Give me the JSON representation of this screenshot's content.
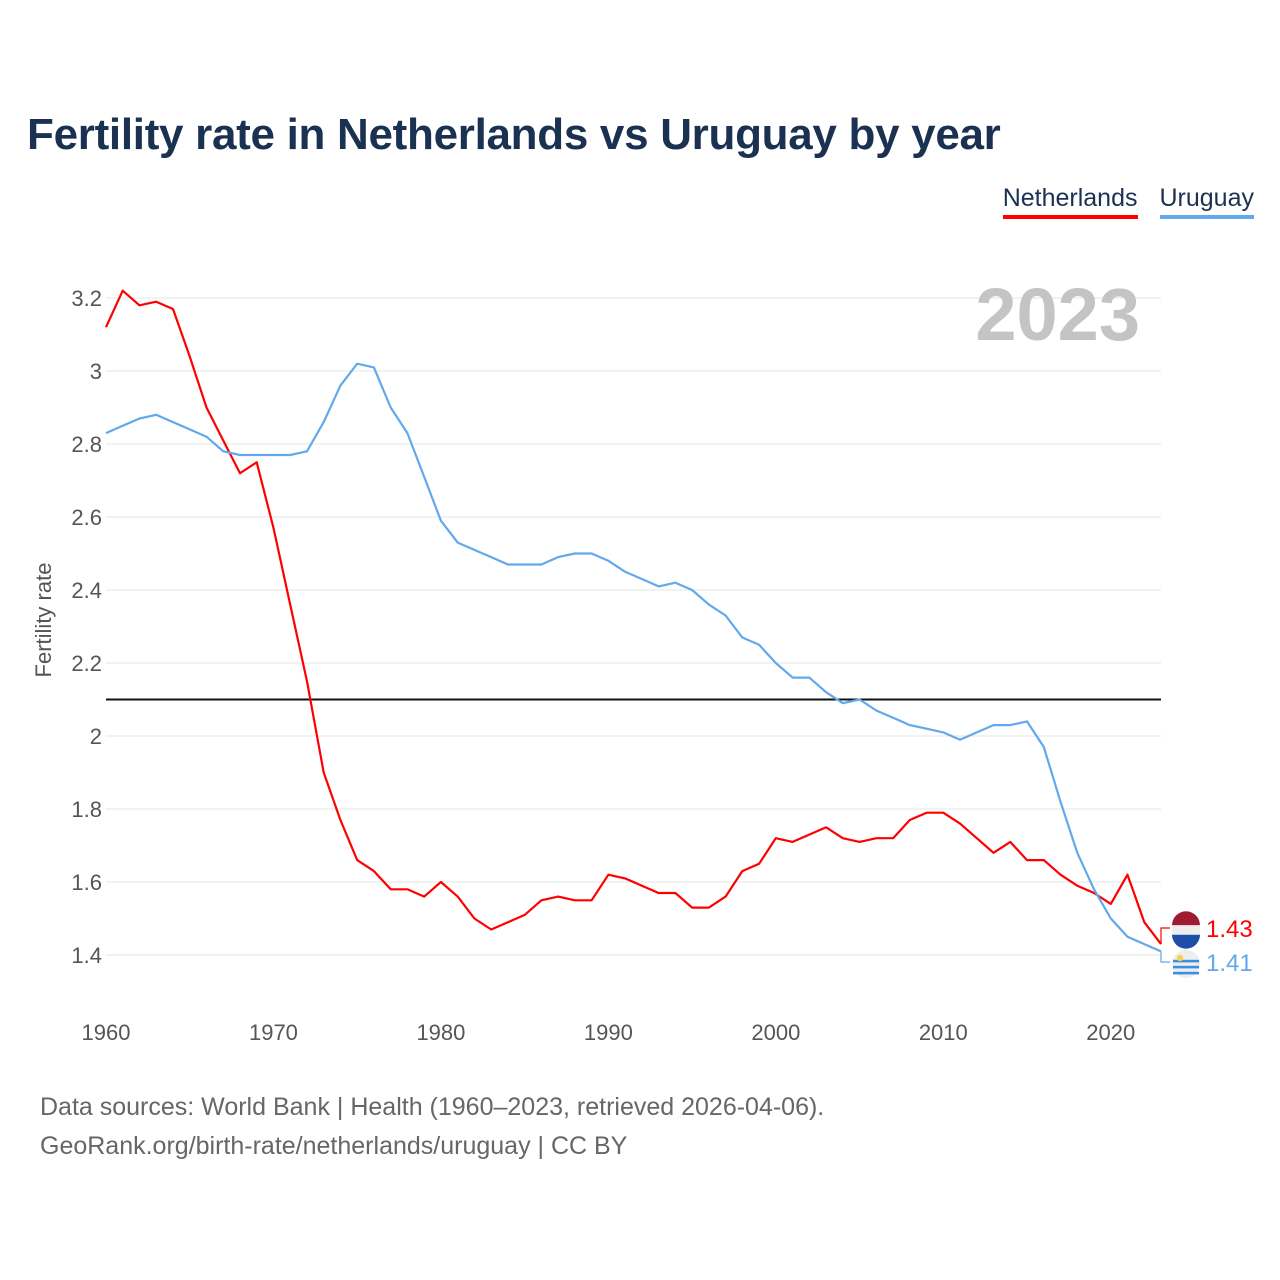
{
  "chart_data": {
    "type": "line",
    "title": "Fertility rate in Netherlands vs Uruguay by year",
    "xlabel": "",
    "ylabel": "Fertility rate",
    "year_label": "2023",
    "xlim": [
      1960,
      2023
    ],
    "ylim": [
      1.3,
      3.25
    ],
    "xticks": [
      1960,
      1970,
      1980,
      1990,
      2000,
      2010,
      2020
    ],
    "yticks": [
      1.4,
      1.6,
      1.8,
      2,
      2.2,
      2.4,
      2.6,
      2.8,
      3,
      3.2
    ],
    "reference_line": 2.1,
    "grid": true,
    "legend_position": "top-right",
    "x": [
      1960,
      1961,
      1962,
      1963,
      1964,
      1965,
      1966,
      1967,
      1968,
      1969,
      1970,
      1971,
      1972,
      1973,
      1974,
      1975,
      1976,
      1977,
      1978,
      1979,
      1980,
      1981,
      1982,
      1983,
      1984,
      1985,
      1986,
      1987,
      1988,
      1989,
      1990,
      1991,
      1992,
      1993,
      1994,
      1995,
      1996,
      1997,
      1998,
      1999,
      2000,
      2001,
      2002,
      2003,
      2004,
      2005,
      2006,
      2007,
      2008,
      2009,
      2010,
      2011,
      2012,
      2013,
      2014,
      2015,
      2016,
      2017,
      2018,
      2019,
      2020,
      2021,
      2022,
      2023
    ],
    "series": [
      {
        "name": "Netherlands",
        "color": "#ff0000",
        "end_label": "1.43",
        "values": [
          3.12,
          3.22,
          3.18,
          3.19,
          3.17,
          3.04,
          2.9,
          2.81,
          2.72,
          2.75,
          2.57,
          2.36,
          2.15,
          1.9,
          1.77,
          1.66,
          1.63,
          1.58,
          1.58,
          1.56,
          1.6,
          1.56,
          1.5,
          1.47,
          1.49,
          1.51,
          1.55,
          1.56,
          1.55,
          1.55,
          1.62,
          1.61,
          1.59,
          1.57,
          1.57,
          1.53,
          1.53,
          1.56,
          1.63,
          1.65,
          1.72,
          1.71,
          1.73,
          1.75,
          1.72,
          1.71,
          1.72,
          1.72,
          1.77,
          1.79,
          1.79,
          1.76,
          1.72,
          1.68,
          1.71,
          1.66,
          1.66,
          1.62,
          1.59,
          1.57,
          1.54,
          1.62,
          1.49,
          1.43
        ]
      },
      {
        "name": "Uruguay",
        "color": "#62a8ec",
        "end_label": "1.41",
        "values": [
          2.83,
          2.85,
          2.87,
          2.88,
          2.86,
          2.84,
          2.82,
          2.78,
          2.77,
          2.77,
          2.77,
          2.77,
          2.78,
          2.86,
          2.96,
          3.02,
          3.01,
          2.9,
          2.83,
          2.71,
          2.59,
          2.53,
          2.51,
          2.49,
          2.47,
          2.47,
          2.47,
          2.49,
          2.5,
          2.5,
          2.48,
          2.45,
          2.43,
          2.41,
          2.42,
          2.4,
          2.36,
          2.33,
          2.27,
          2.25,
          2.2,
          2.16,
          2.16,
          2.12,
          2.09,
          2.1,
          2.07,
          2.05,
          2.03,
          2.02,
          2.01,
          1.99,
          2.01,
          2.03,
          2.03,
          2.04,
          1.97,
          1.82,
          1.68,
          1.58,
          1.5,
          1.45,
          1.43,
          1.41
        ]
      }
    ]
  },
  "footer": {
    "line1": "Data sources: World Bank | Health (1960–2023, retrieved 2026-04-06).",
    "line2": "GeoRank.org/birth-rate/netherlands/uruguay | CC BY"
  }
}
